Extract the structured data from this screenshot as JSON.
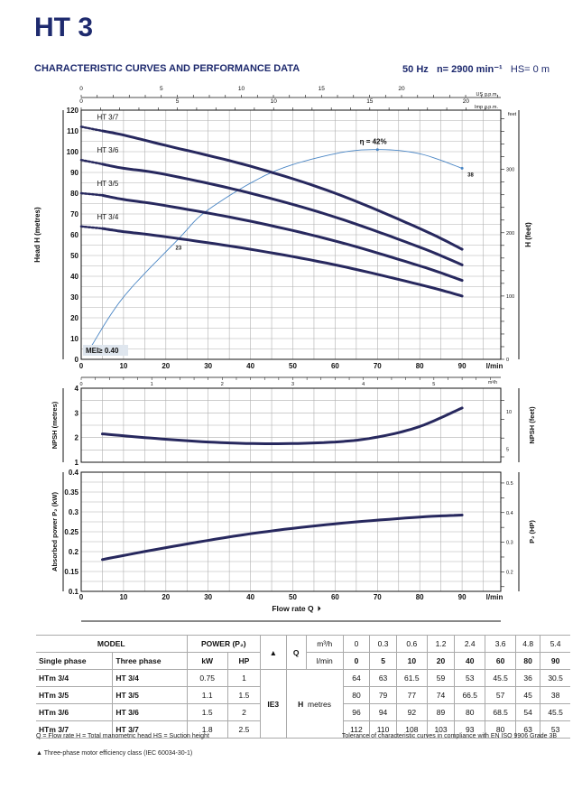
{
  "header": {
    "title": "HT 3",
    "subtitle": "CHARACTERISTIC CURVES AND PERFORMANCE DATA",
    "frequency": "50 Hz",
    "speed": "n= 2900 min⁻¹",
    "suction": "HS= 0 m"
  },
  "chart_data": [
    {
      "type": "line",
      "title": "Head",
      "xlabel": "l/min",
      "ylabel": "Head H (metres)",
      "ylabel_right": "H (feet)",
      "xlim": [
        0,
        99
      ],
      "ylim": [
        0,
        120
      ],
      "x_ticks": [
        0,
        10,
        20,
        30,
        40,
        50,
        60,
        70,
        80,
        90
      ],
      "y_ticks": [
        0,
        10,
        20,
        30,
        40,
        50,
        60,
        70,
        80,
        90,
        100,
        110,
        120
      ],
      "right_ticks": [
        0,
        100,
        200,
        300
      ],
      "right_unit": "feet",
      "top_axes": [
        {
          "unit": "US g.p.m.",
          "ticks": [
            0,
            5,
            10,
            15,
            20
          ]
        },
        {
          "unit": "Imp g.p.m.",
          "ticks": [
            0,
            5,
            10,
            15,
            20
          ]
        }
      ],
      "bottom_axis": {
        "unit": "m³/h",
        "ticks": [
          0,
          1,
          2,
          3,
          4,
          5
        ]
      },
      "grid": true,
      "x": [
        5,
        10,
        20,
        40,
        60,
        80,
        90
      ],
      "series": [
        {
          "name": "HT 3/7",
          "shutoff": 112,
          "values": [
            110,
            108,
            103,
            93,
            80,
            63,
            53
          ]
        },
        {
          "name": "HT 3/6",
          "shutoff": 96,
          "values": [
            94,
            92,
            89,
            80,
            68.5,
            54,
            45.5
          ]
        },
        {
          "name": "HT 3/5",
          "shutoff": 80,
          "values": [
            79,
            77,
            74,
            66.5,
            57,
            45,
            38
          ]
        },
        {
          "name": "HT 3/4",
          "shutoff": 64,
          "values": [
            63,
            61.5,
            59,
            53,
            45.5,
            36,
            30.5
          ]
        }
      ],
      "efficiency_curve": {
        "x": [
          2,
          10,
          23,
          30,
          45,
          60,
          70,
          80,
          90
        ],
        "y": [
          5,
          30,
          58,
          72,
          90,
          99,
          101,
          99,
          92
        ],
        "peak_label": "η = 42%",
        "start_label": "23",
        "end_label": "38"
      },
      "mei_label": "MEI≥ 0.40"
    },
    {
      "type": "line",
      "title": "NPSH",
      "ylabel": "NPSH (metres)",
      "ylabel_right": "NPSH (feet)",
      "ylim": [
        1,
        4
      ],
      "y_ticks": [
        1,
        2,
        3,
        4
      ],
      "right_ticks": [
        5,
        10
      ],
      "x": [
        5,
        15,
        30,
        45,
        60,
        70,
        80,
        90
      ],
      "values": [
        2.15,
        2.0,
        1.82,
        1.75,
        1.82,
        2.02,
        2.45,
        3.2
      ]
    },
    {
      "type": "line",
      "title": "Absorbed power",
      "xlabel": "Flow rate  Q",
      "x_unit": "l/min",
      "ylabel": "Absorbed power P₂ (kW)",
      "ylabel_right": "P₂ (HP)",
      "ylim": [
        0.1,
        0.4
      ],
      "y_ticks": [
        0.1,
        0.15,
        0.2,
        0.25,
        0.3,
        0.35,
        0.4
      ],
      "right_ticks": [
        0.2,
        0.3,
        0.4,
        0.5
      ],
      "x": [
        5,
        20,
        40,
        60,
        80,
        90
      ],
      "values": [
        0.18,
        0.21,
        0.245,
        0.27,
        0.287,
        0.292
      ]
    }
  ],
  "table": {
    "model": "MODEL",
    "single_phase": "Single phase",
    "three_phase": "Three phase",
    "power": "POWER (P₂)",
    "kw": "kW",
    "hp": "HP",
    "triangle": "▲",
    "q": "Q",
    "m3h": "m³/h",
    "lmin": "l/min",
    "ie": "IE3",
    "h": "H",
    "metres": "metres",
    "q_m3h": [
      "0",
      "0.3",
      "0.6",
      "1.2",
      "2.4",
      "3.6",
      "4.8",
      "5.4"
    ],
    "q_lmin": [
      "0",
      "5",
      "10",
      "20",
      "40",
      "60",
      "80",
      "90"
    ],
    "rows": [
      {
        "single": "HTm 3/4",
        "three": "HT 3/4",
        "kw": "0.75",
        "hp": "1",
        "h": [
          "64",
          "63",
          "61.5",
          "59",
          "53",
          "45.5",
          "36",
          "30.5"
        ]
      },
      {
        "single": "HTm 3/5",
        "three": "HT 3/5",
        "kw": "1.1",
        "hp": "1.5",
        "h": [
          "80",
          "79",
          "77",
          "74",
          "66.5",
          "57",
          "45",
          "38"
        ]
      },
      {
        "single": "HTm 3/6",
        "three": "HT 3/6",
        "kw": "1.5",
        "hp": "2",
        "h": [
          "96",
          "94",
          "92",
          "89",
          "80",
          "68.5",
          "54",
          "45.5"
        ]
      },
      {
        "single": "HTm 3/7",
        "three": "HT 3/7",
        "kw": "1.8",
        "hp": "2.5",
        "h": [
          "112",
          "110",
          "108",
          "103",
          "93",
          "80",
          "63",
          "53"
        ]
      }
    ]
  },
  "footnotes": {
    "legend": "Q = Flow rate  H = Total manometric head  HS = Suction height",
    "tolerance": "Tolerance of characteristic curves in compliance with EN ISO 9906 Grade 3B",
    "efficiency": "▲  Three-phase motor efficiency class (IEC 60034-30-1)"
  },
  "colors": {
    "curve": "#27285e",
    "efficiency": "#4a86c5",
    "title": "#1e2a6e",
    "grid": "#b0b0b0"
  }
}
